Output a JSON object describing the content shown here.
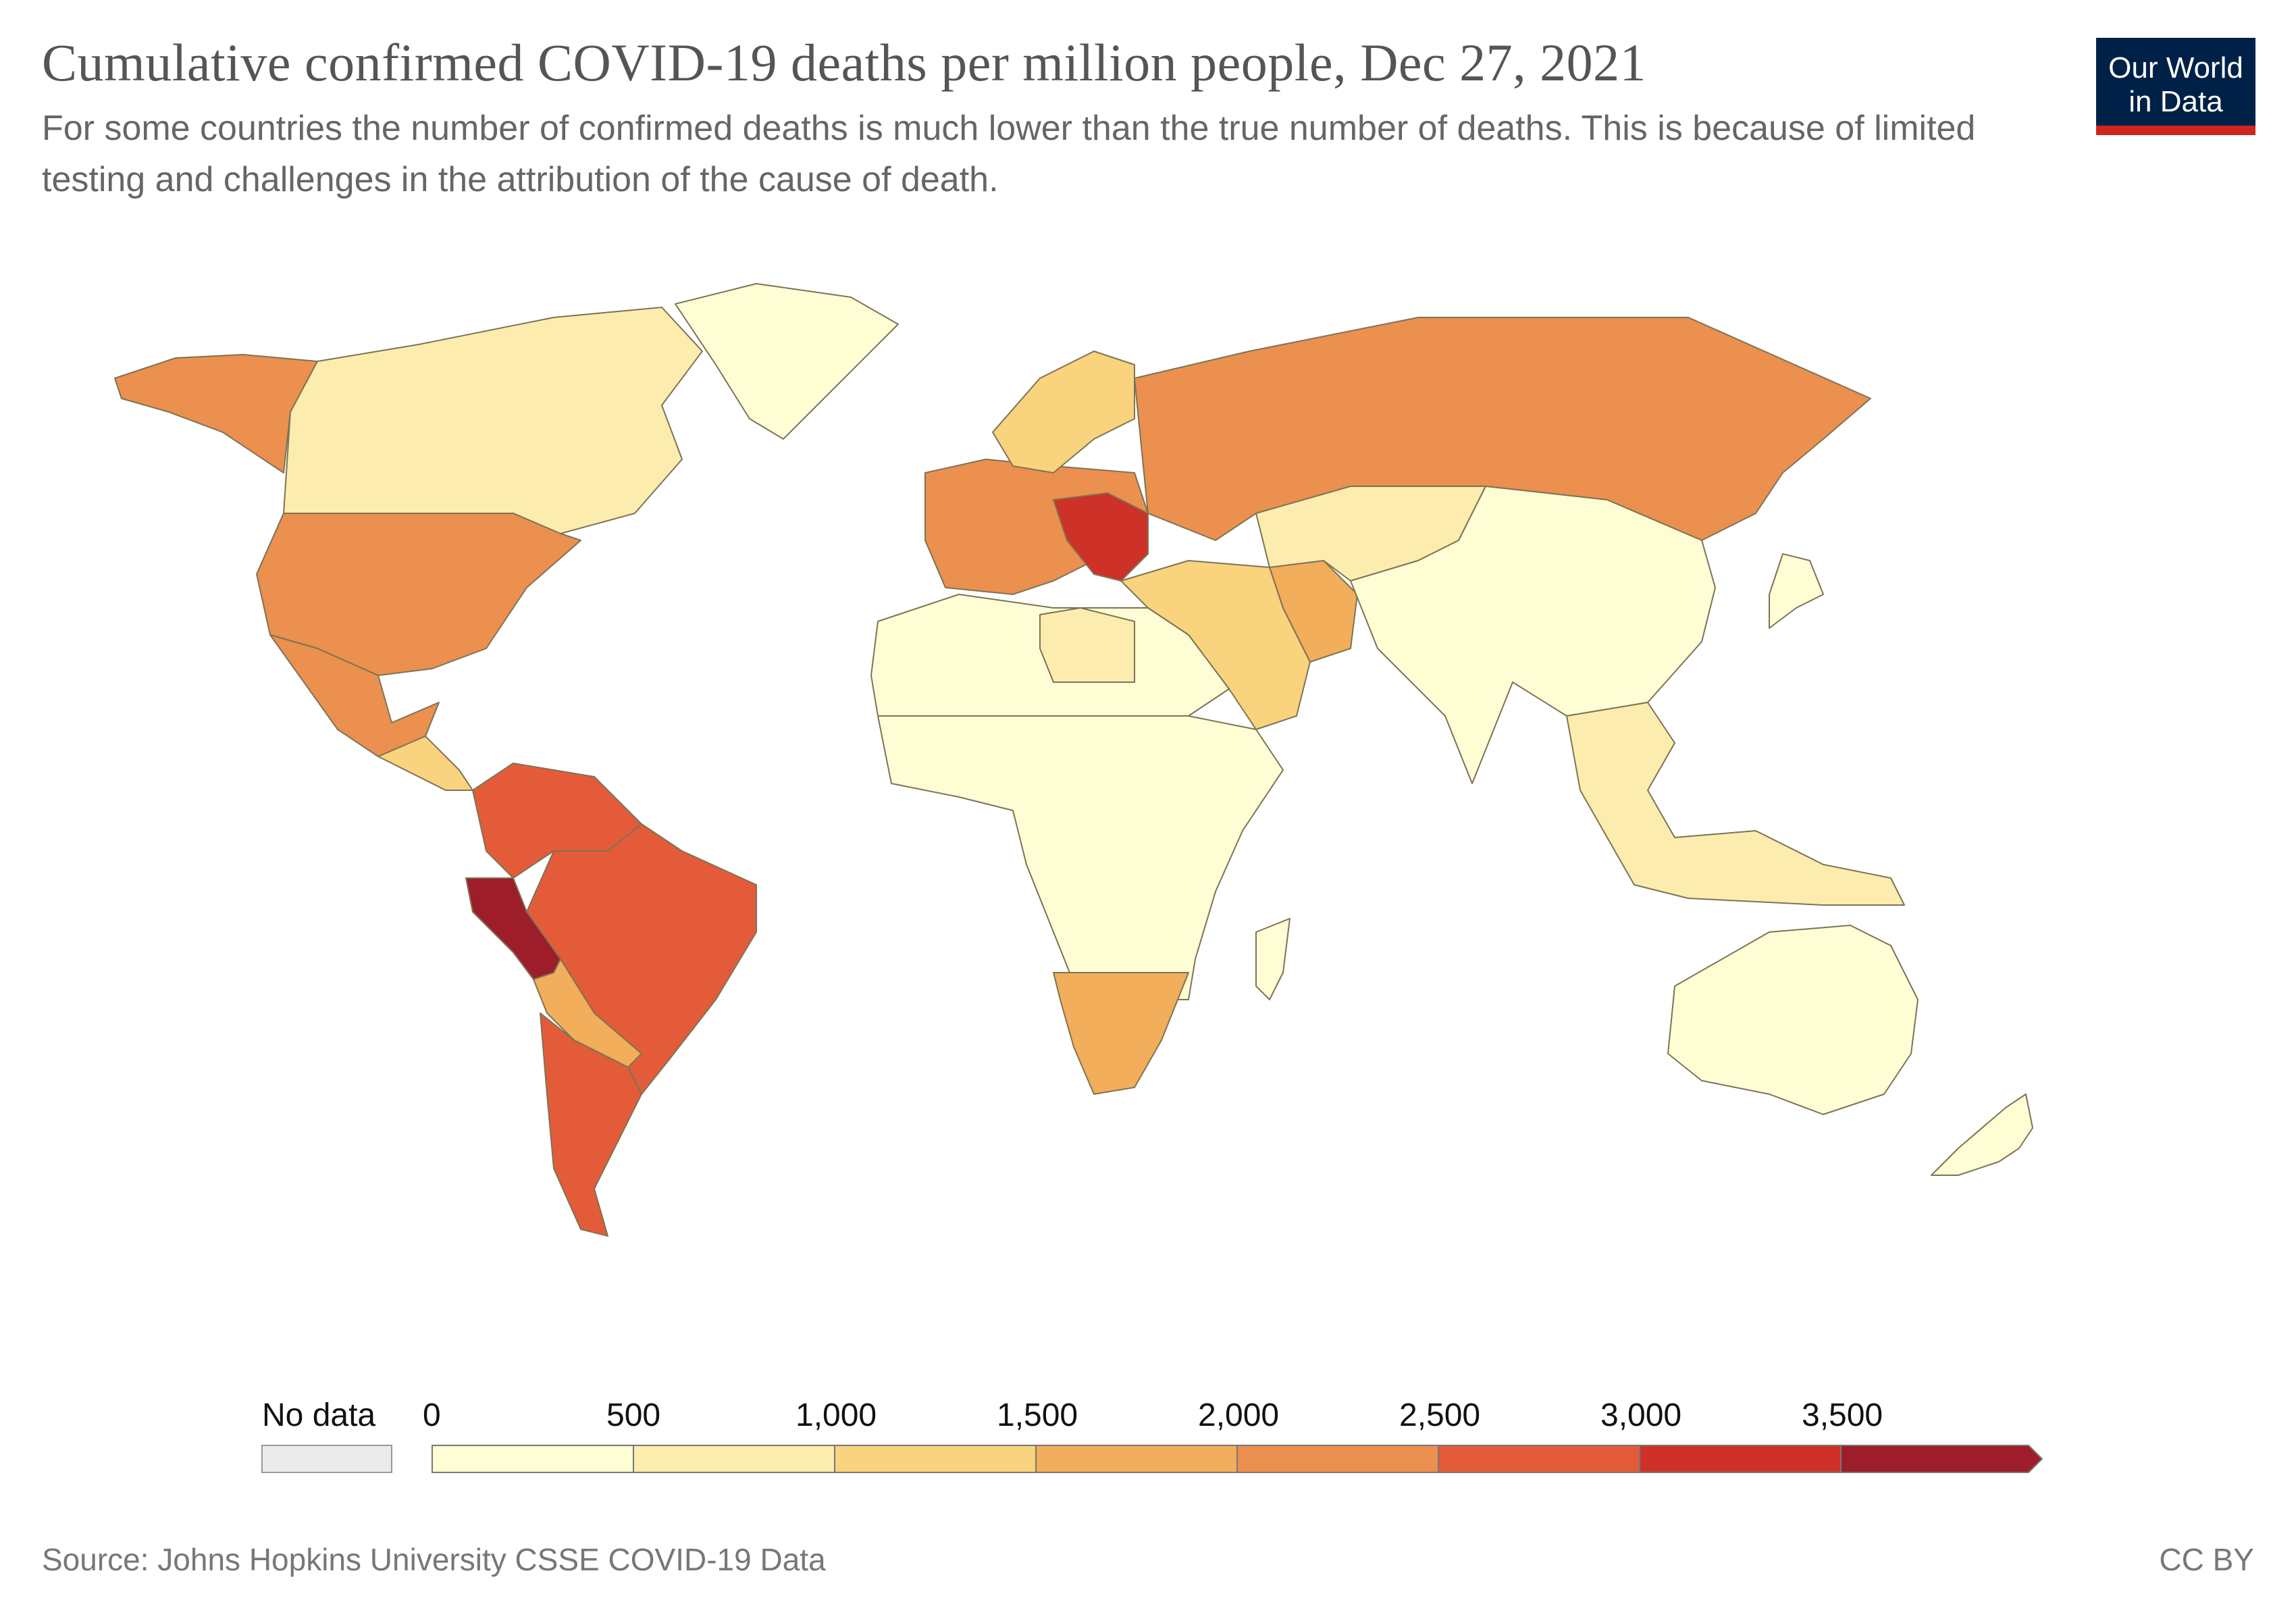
{
  "header": {
    "title": "Cumulative confirmed COVID-19 deaths per million people, Dec 27, 2021",
    "subtitle": "For some countries the number of confirmed deaths is much lower than the true number of deaths. This is because of limited testing and challenges in the attribution of the cause of death."
  },
  "logo": {
    "line1": "Our World",
    "line2": "in Data",
    "background": "#002147",
    "accent": "#ce261e"
  },
  "legend": {
    "no_data_label": "No data",
    "no_data_color": "#ebebeb",
    "bins": [
      {
        "label": "0",
        "color": "#fefdd4"
      },
      {
        "label": "500",
        "color": "#fcecae"
      },
      {
        "label": "1,000",
        "color": "#f9d37d"
      },
      {
        "label": "1,500",
        "color": "#f2ae5a"
      },
      {
        "label": "2,000",
        "color": "#eb904e"
      },
      {
        "label": "2,500",
        "color": "#e45b3a"
      },
      {
        "label": "3,000",
        "color": "#cd3128"
      },
      {
        "label": "3,500",
        "color": "#9e1d2a"
      }
    ]
  },
  "map": {
    "regions": [
      {
        "name": "alaska",
        "bin": 4
      },
      {
        "name": "canada",
        "bin": 1
      },
      {
        "name": "greenland",
        "bin": 0
      },
      {
        "name": "usa",
        "bin": 4
      },
      {
        "name": "mexico",
        "bin": 4
      },
      {
        "name": "central-america",
        "bin": 2
      },
      {
        "name": "colombia-venezuela",
        "bin": 5
      },
      {
        "name": "brazil",
        "bin": 5
      },
      {
        "name": "peru",
        "bin": 7
      },
      {
        "name": "bolivia-paraguay",
        "bin": 3
      },
      {
        "name": "chile-argentina",
        "bin": 5
      },
      {
        "name": "western-europe",
        "bin": 4
      },
      {
        "name": "nordics",
        "bin": 2
      },
      {
        "name": "balkans",
        "bin": 6
      },
      {
        "name": "russia",
        "bin": 4
      },
      {
        "name": "middle-east",
        "bin": 2
      },
      {
        "name": "iran",
        "bin": 3
      },
      {
        "name": "north-africa",
        "bin": 0
      },
      {
        "name": "libya",
        "bin": 1
      },
      {
        "name": "sub-saharan-africa",
        "bin": 0
      },
      {
        "name": "southern-africa",
        "bin": 3
      },
      {
        "name": "madagascar",
        "bin": 0
      },
      {
        "name": "central-asia",
        "bin": 1
      },
      {
        "name": "china-south-asia",
        "bin": 0
      },
      {
        "name": "japan",
        "bin": 0
      },
      {
        "name": "southeast-asia",
        "bin": 1
      },
      {
        "name": "australia",
        "bin": 0
      },
      {
        "name": "new-zealand",
        "bin": 0
      }
    ]
  },
  "footer": {
    "source": "Source: Johns Hopkins University CSSE COVID-19 Data",
    "license": "CC BY"
  }
}
